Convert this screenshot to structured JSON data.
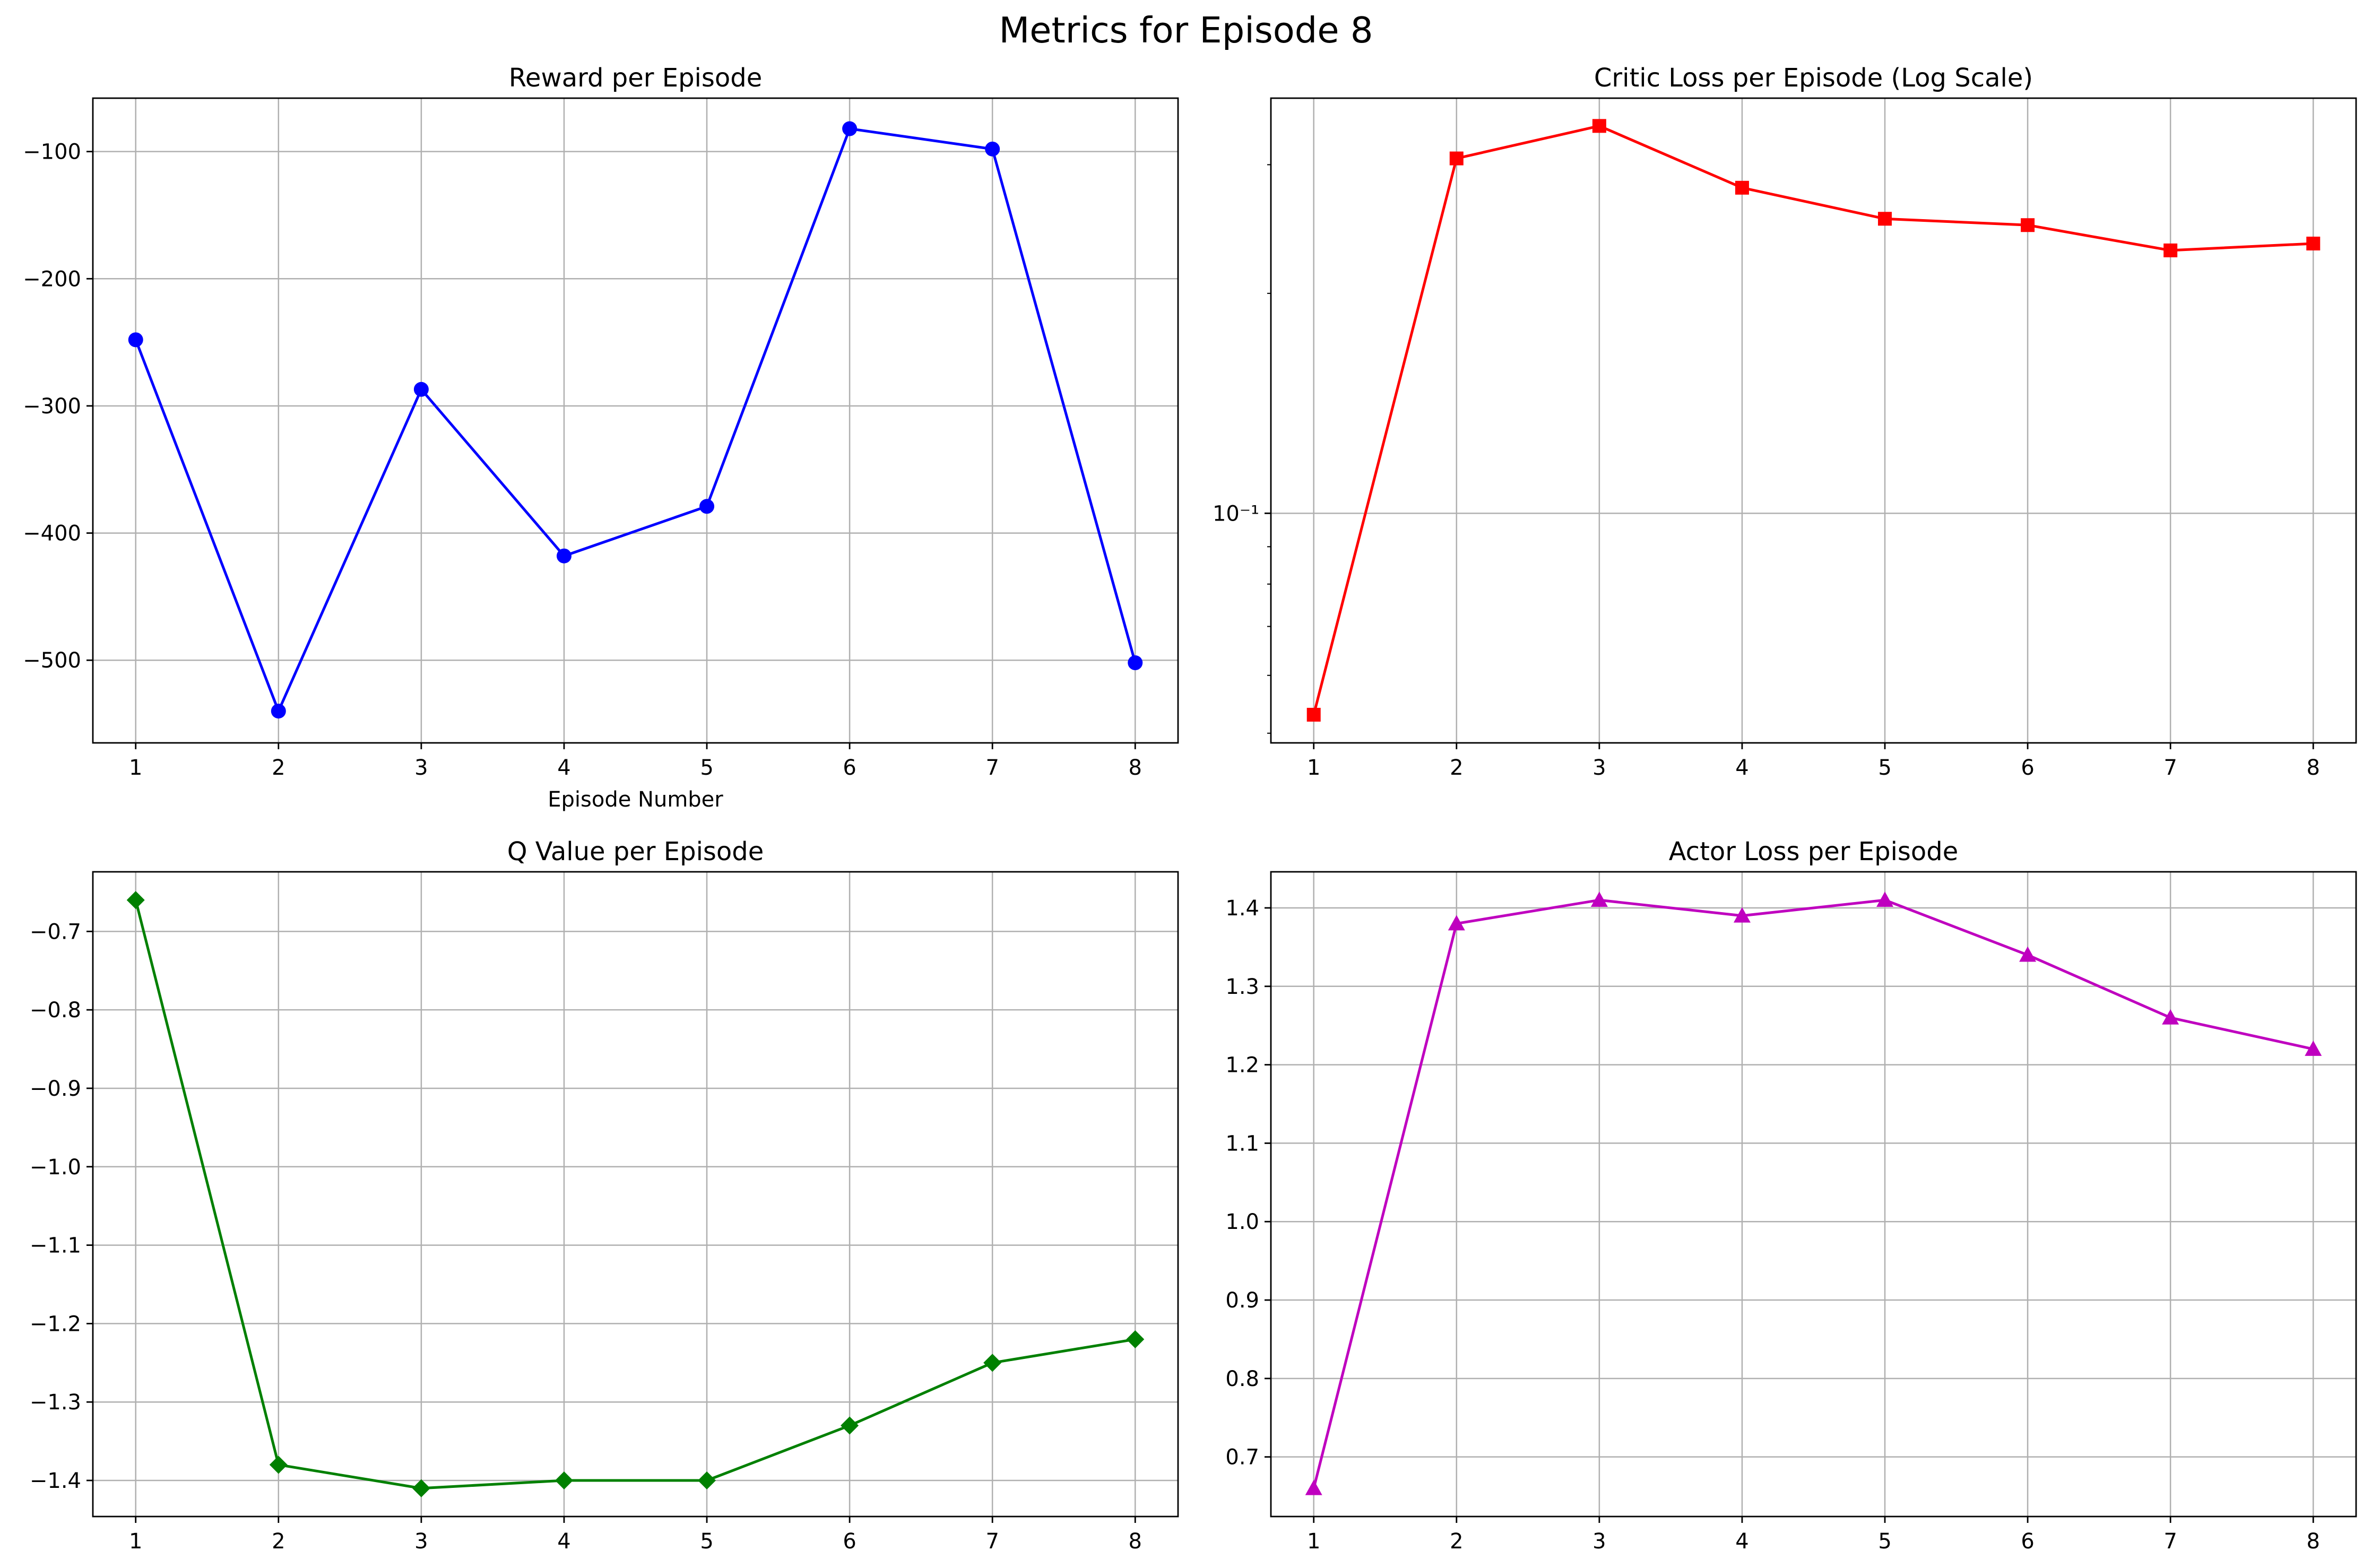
{
  "figure": {
    "title": "Metrics for Episode 8"
  },
  "chart_data": [
    {
      "id": "reward",
      "type": "line",
      "title": "Reward per Episode",
      "xlabel": "Episode Number",
      "ylabel": "",
      "x": [
        1,
        2,
        3,
        4,
        5,
        6,
        7,
        8
      ],
      "series": [
        {
          "values": [
            -248,
            -540,
            -287,
            -418,
            -379,
            -82,
            -98,
            -502
          ],
          "color": "#0000ff",
          "marker": "circle"
        }
      ],
      "xlim": [
        0.7,
        8.3
      ],
      "ylim": [
        -565,
        -58
      ],
      "xticks": [
        1,
        2,
        3,
        4,
        5,
        6,
        7,
        8
      ],
      "yticks": [
        -500,
        -400,
        -300,
        -200,
        -100
      ],
      "yticklabels": [
        "−500",
        "−400",
        "−300",
        "−200",
        "−100"
      ],
      "yscale": "linear",
      "grid": true
    },
    {
      "id": "critic",
      "type": "line",
      "title": "Critic Loss per Episode (Log Scale)",
      "xlabel": "",
      "ylabel": "",
      "x": [
        1,
        2,
        3,
        4,
        5,
        6,
        7,
        8
      ],
      "series": [
        {
          "values": [
            0.053,
            0.306,
            0.339,
            0.279,
            0.253,
            0.248,
            0.229,
            0.234
          ],
          "color": "#ff0000",
          "marker": "square"
        }
      ],
      "xlim": [
        0.7,
        8.3
      ],
      "ylim": [
        0.0485,
        0.37
      ],
      "xticks": [
        1,
        2,
        3,
        4,
        5,
        6,
        7,
        8
      ],
      "yticks": [
        0.1
      ],
      "yticklabels": [
        "10⁻¹"
      ],
      "yscale": "log",
      "grid": true
    },
    {
      "id": "qvalue",
      "type": "line",
      "title": "Q Value per Episode",
      "xlabel": "",
      "ylabel": "",
      "x": [
        1,
        2,
        3,
        4,
        5,
        6,
        7,
        8
      ],
      "series": [
        {
          "values": [
            -0.66,
            -1.38,
            -1.41,
            -1.4,
            -1.4,
            -1.33,
            -1.25,
            -1.22
          ],
          "color": "#008000",
          "marker": "diamond"
        }
      ],
      "xlim": [
        0.7,
        8.3
      ],
      "ylim": [
        -1.446,
        -0.624
      ],
      "xticks": [
        1,
        2,
        3,
        4,
        5,
        6,
        7,
        8
      ],
      "yticks": [
        -1.4,
        -1.3,
        -1.2,
        -1.1,
        -1.0,
        -0.9,
        -0.8,
        -0.7
      ],
      "yticklabels": [
        "−1.4",
        "−1.3",
        "−1.2",
        "−1.1",
        "−1.0",
        "−0.9",
        "−0.8",
        "−0.7"
      ],
      "yscale": "linear",
      "grid": true
    },
    {
      "id": "actor",
      "type": "line",
      "title": "Actor Loss per Episode",
      "xlabel": "",
      "ylabel": "",
      "x": [
        1,
        2,
        3,
        4,
        5,
        6,
        7,
        8
      ],
      "series": [
        {
          "values": [
            0.66,
            1.38,
            1.41,
            1.39,
            1.41,
            1.34,
            1.26,
            1.22
          ],
          "color": "#bf00bf",
          "marker": "triangle"
        }
      ],
      "xlim": [
        0.7,
        8.3
      ],
      "ylim": [
        0.624,
        1.446
      ],
      "xticks": [
        1,
        2,
        3,
        4,
        5,
        6,
        7,
        8
      ],
      "yticks": [
        0.7,
        0.8,
        0.9,
        1.0,
        1.1,
        1.2,
        1.3,
        1.4
      ],
      "yticklabels": [
        "0.7",
        "0.8",
        "0.9",
        "1.0",
        "1.1",
        "1.2",
        "1.3",
        "1.4"
      ],
      "yscale": "linear",
      "grid": true
    }
  ]
}
